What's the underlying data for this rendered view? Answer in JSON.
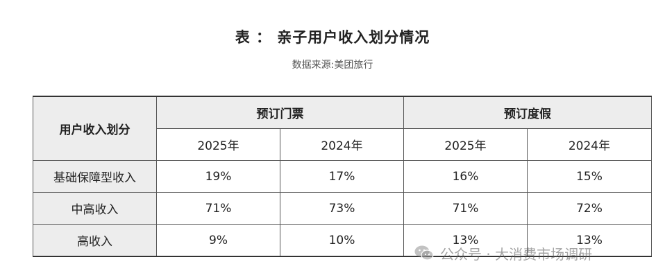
{
  "header": {
    "title": "表 ： 亲子用户收入划分情况",
    "source": "数据来源:美团旅行"
  },
  "table": {
    "row_header_label": "用户收入划分",
    "groups": [
      "预订门票",
      "预订度假"
    ],
    "years": [
      "2025年",
      "2024年",
      "2025年",
      "2024年"
    ],
    "rows": [
      {
        "label": "基础保障型收入",
        "values": [
          "19%",
          "17%",
          "16%",
          "15%"
        ]
      },
      {
        "label": "中高收入",
        "values": [
          "71%",
          "73%",
          "71%",
          "72%"
        ]
      },
      {
        "label": "高收入",
        "values": [
          "9%",
          "10%",
          "13%",
          "13%"
        ]
      }
    ]
  },
  "watermark": {
    "text": "公众号 · 大消费市场调研",
    "icon": "wechat-icon"
  }
}
